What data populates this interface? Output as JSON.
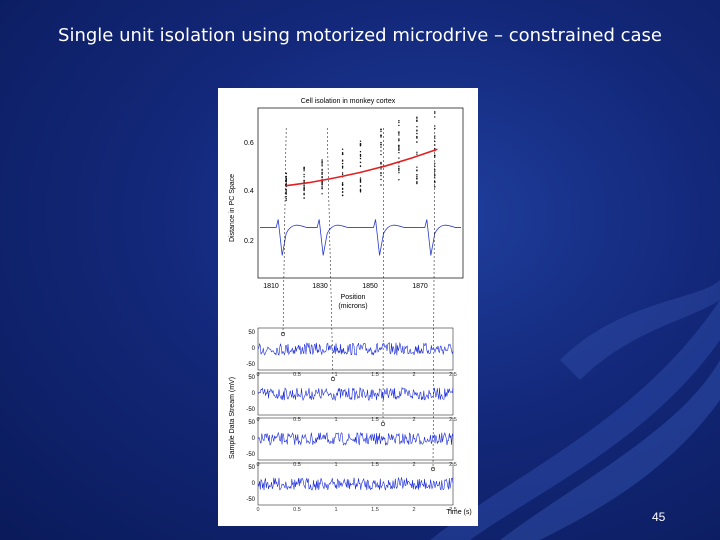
{
  "slide": {
    "title": "Single unit isolation using motorized microdrive – constrained case",
    "page_number": "45"
  },
  "colors": {
    "background": "#13287a",
    "trend_line": "#e02020",
    "trace": "#1a2ad8",
    "title_text": "#ffffff"
  },
  "chart_data": [
    {
      "type": "scatter",
      "title": "Cell isolation in monkey cortex",
      "xlabel": "Position",
      "xlabel_units": "(microns)",
      "ylabel": "Distance in PC Space",
      "x_ticks": [
        "1810",
        "1830",
        "1850",
        "1870"
      ],
      "y_ticks": [
        "0.6",
        "0.4",
        "0.2"
      ],
      "xlim": [
        1800,
        1880
      ],
      "ylim": [
        0.0,
        0.7
      ],
      "columns_x": [
        1811,
        1818,
        1825,
        1833,
        1840,
        1848,
        1855,
        1862,
        1869
      ],
      "trend": {
        "x": [
          1811,
          1820,
          1830,
          1840,
          1850,
          1860,
          1870
        ],
        "y": [
          0.38,
          0.393,
          0.412,
          0.435,
          0.462,
          0.494,
          0.53
        ]
      },
      "spike_markers_x": [
        1811,
        1827,
        1849,
        1869
      ]
    },
    {
      "type": "line",
      "ylabel": "Sample Data Stream (mV)",
      "xlabel": "Time (s)",
      "x_ticks": [
        "0",
        "0.5",
        "1",
        "1.5",
        "2",
        "2.5"
      ],
      "y_tick_labels": [
        "50",
        "0",
        "-50"
      ],
      "xlim": [
        0,
        2.5
      ],
      "ylim": [
        -50,
        50
      ],
      "series": [
        {
          "values_range": [
            -30,
            30
          ]
        },
        {
          "values_range": [
            -30,
            30
          ]
        },
        {
          "values_range": [
            -30,
            30
          ]
        },
        {
          "values_range": [
            -30,
            30
          ]
        }
      ]
    }
  ]
}
